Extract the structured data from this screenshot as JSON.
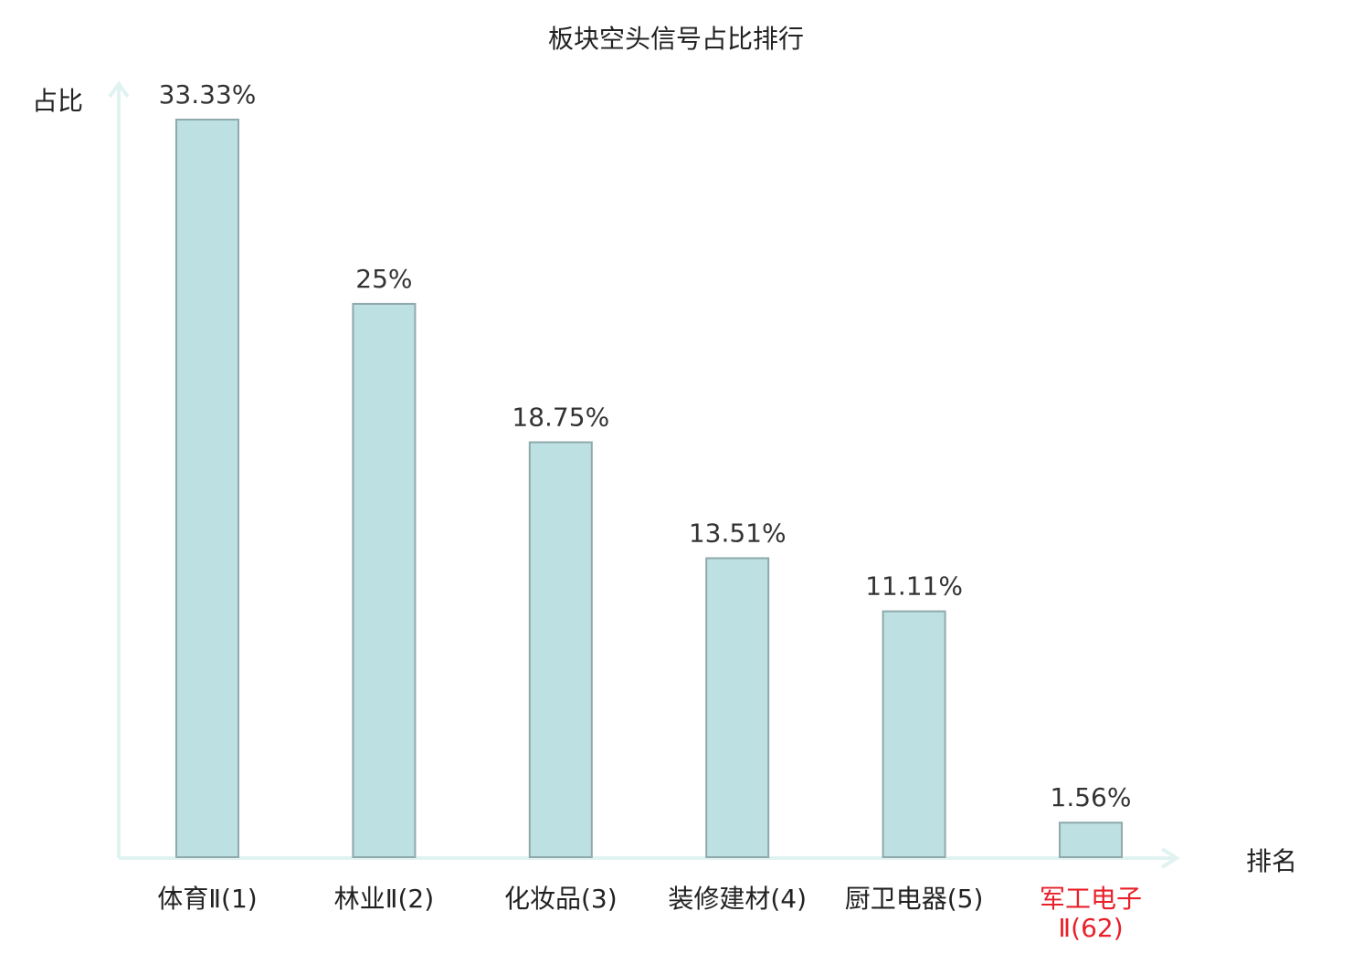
{
  "chart_data": {
    "type": "bar",
    "title": "板块空头信号占比排行",
    "xlabel": "排名",
    "ylabel": "占比",
    "categories": [
      {
        "name": "体育Ⅱ",
        "rank": "(1)",
        "highlight": false
      },
      {
        "name": "林业Ⅱ",
        "rank": "(2)",
        "highlight": false
      },
      {
        "name": "化妆品",
        "rank": "(3)",
        "highlight": false
      },
      {
        "name": "装修建材",
        "rank": "(4)",
        "highlight": false
      },
      {
        "name": "厨卫电器",
        "rank": "(5)",
        "highlight": false
      },
      {
        "name": "军工电子",
        "name_line2": "Ⅱ",
        "rank": "(62)",
        "highlight": true
      }
    ],
    "values": [
      33.33,
      25,
      18.75,
      13.51,
      11.11,
      1.56
    ],
    "value_labels": [
      "33.33%",
      "25%",
      "18.75%",
      "13.51%",
      "11.11%",
      "1.56%"
    ],
    "ylim": [
      0,
      33.33
    ],
    "grid": false,
    "legend": "none",
    "colors": {
      "bar_fill": "#bde0e3",
      "bar_stroke": "#8fa9ac",
      "axis": "#e0f3f1",
      "text": "#222222",
      "value_text": "#333333",
      "highlight_text": "#e8202a"
    }
  }
}
